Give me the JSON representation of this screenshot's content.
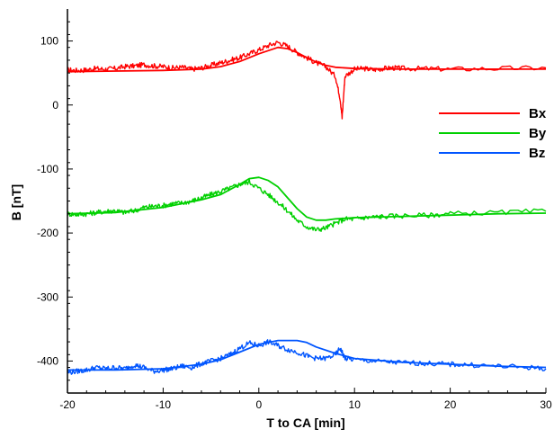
{
  "chart_data": {
    "type": "line",
    "title": "",
    "xlabel": "T to CA [min]",
    "ylabel": "B [nT]",
    "xlim": [
      -20,
      30
    ],
    "ylim": [
      -450,
      150
    ],
    "x_ticks": [
      -20,
      -10,
      0,
      10,
      20,
      30
    ],
    "y_ticks": [
      100,
      0,
      -100,
      -200,
      -300,
      -400
    ],
    "grid": false,
    "legend_position": "right",
    "series": [
      {
        "name": "Bx",
        "color": "#ff0000",
        "observed": [
          [
            -20,
            55
          ],
          [
            -19,
            54
          ],
          [
            -18,
            55
          ],
          [
            -17,
            57
          ],
          [
            -16,
            56
          ],
          [
            -15,
            57
          ],
          [
            -14,
            60
          ],
          [
            -13,
            61
          ],
          [
            -12,
            63
          ],
          [
            -11,
            61
          ],
          [
            -10,
            60
          ],
          [
            -9,
            58
          ],
          [
            -8,
            59
          ],
          [
            -7,
            56
          ],
          [
            -6,
            58
          ],
          [
            -5,
            62
          ],
          [
            -4,
            66
          ],
          [
            -3,
            70
          ],
          [
            -2,
            74
          ],
          [
            -1,
            80
          ],
          [
            0,
            86
          ],
          [
            1,
            93
          ],
          [
            2,
            98
          ],
          [
            3,
            92
          ],
          [
            4,
            82
          ],
          [
            5,
            74
          ],
          [
            6,
            66
          ],
          [
            7,
            60
          ],
          [
            8,
            45
          ],
          [
            8.5,
            10
          ],
          [
            8.7,
            -20
          ],
          [
            9,
            45
          ],
          [
            10,
            56
          ],
          [
            11,
            57
          ],
          [
            12,
            55
          ],
          [
            13,
            57
          ],
          [
            14,
            58
          ],
          [
            15,
            57
          ],
          [
            17,
            57
          ],
          [
            20,
            56
          ],
          [
            25,
            57
          ],
          [
            30,
            58
          ]
        ],
        "model": [
          [
            -20,
            52
          ],
          [
            -15,
            53
          ],
          [
            -10,
            54
          ],
          [
            -6,
            56
          ],
          [
            -4,
            60
          ],
          [
            -2,
            68
          ],
          [
            0,
            80
          ],
          [
            2,
            90
          ],
          [
            3,
            88
          ],
          [
            4,
            82
          ],
          [
            5,
            74
          ],
          [
            6,
            67
          ],
          [
            7,
            62
          ],
          [
            8,
            59
          ],
          [
            10,
            57
          ],
          [
            15,
            56
          ],
          [
            20,
            56
          ],
          [
            25,
            56
          ],
          [
            30,
            56
          ]
        ]
      },
      {
        "name": "By",
        "color": "#00d000",
        "observed": [
          [
            -20,
            -170
          ],
          [
            -19,
            -171
          ],
          [
            -18,
            -170
          ],
          [
            -17,
            -168
          ],
          [
            -16,
            -166
          ],
          [
            -15,
            -165
          ],
          [
            -14,
            -168
          ],
          [
            -13,
            -165
          ],
          [
            -12,
            -160
          ],
          [
            -11,
            -158
          ],
          [
            -10,
            -157
          ],
          [
            -9,
            -154
          ],
          [
            -8,
            -153
          ],
          [
            -7,
            -150
          ],
          [
            -6,
            -145
          ],
          [
            -5,
            -140
          ],
          [
            -4,
            -135
          ],
          [
            -3,
            -130
          ],
          [
            -2,
            -124
          ],
          [
            -1,
            -120
          ],
          [
            0,
            -130
          ],
          [
            1,
            -140
          ],
          [
            2,
            -152
          ],
          [
            3,
            -165
          ],
          [
            4,
            -180
          ],
          [
            5,
            -190
          ],
          [
            6,
            -195
          ],
          [
            7,
            -192
          ],
          [
            8,
            -185
          ],
          [
            9,
            -178
          ],
          [
            10,
            -178
          ],
          [
            11,
            -176
          ],
          [
            12,
            -175
          ],
          [
            13,
            -174
          ],
          [
            15,
            -173
          ],
          [
            18,
            -172
          ],
          [
            20,
            -170
          ],
          [
            25,
            -168
          ],
          [
            30,
            -166
          ]
        ],
        "model": [
          [
            -20,
            -170
          ],
          [
            -15,
            -168
          ],
          [
            -10,
            -160
          ],
          [
            -6,
            -148
          ],
          [
            -4,
            -140
          ],
          [
            -2,
            -124
          ],
          [
            -1,
            -115
          ],
          [
            0,
            -113
          ],
          [
            1,
            -118
          ],
          [
            2,
            -128
          ],
          [
            3,
            -145
          ],
          [
            4,
            -162
          ],
          [
            5,
            -175
          ],
          [
            6,
            -180
          ],
          [
            7,
            -180
          ],
          [
            8,
            -178
          ],
          [
            10,
            -176
          ],
          [
            15,
            -174
          ],
          [
            20,
            -172
          ],
          [
            25,
            -170
          ],
          [
            30,
            -169
          ]
        ]
      },
      {
        "name": "Bz",
        "color": "#0055ff",
        "observed": [
          [
            -20,
            -418
          ],
          [
            -19,
            -416
          ],
          [
            -18,
            -414
          ],
          [
            -17,
            -410
          ],
          [
            -16,
            -412
          ],
          [
            -15,
            -410
          ],
          [
            -14,
            -412
          ],
          [
            -13,
            -406
          ],
          [
            -12,
            -410
          ],
          [
            -11,
            -416
          ],
          [
            -10,
            -414
          ],
          [
            -9,
            -412
          ],
          [
            -8,
            -408
          ],
          [
            -7,
            -410
          ],
          [
            -6,
            -404
          ],
          [
            -5,
            -400
          ],
          [
            -4,
            -396
          ],
          [
            -3,
            -390
          ],
          [
            -2,
            -380
          ],
          [
            -1,
            -372
          ],
          [
            0,
            -376
          ],
          [
            1,
            -370
          ],
          [
            2,
            -376
          ],
          [
            3,
            -382
          ],
          [
            4,
            -386
          ],
          [
            5,
            -392
          ],
          [
            6,
            -396
          ],
          [
            7,
            -396
          ],
          [
            8,
            -390
          ],
          [
            8.5,
            -380
          ],
          [
            9,
            -396
          ],
          [
            10,
            -398
          ],
          [
            12,
            -400
          ],
          [
            14,
            -402
          ],
          [
            16,
            -403
          ],
          [
            18,
            -404
          ],
          [
            20,
            -405
          ],
          [
            22,
            -406
          ],
          [
            25,
            -408
          ],
          [
            28,
            -410
          ],
          [
            30,
            -412
          ]
        ],
        "model": [
          [
            -20,
            -414
          ],
          [
            -15,
            -414
          ],
          [
            -10,
            -412
          ],
          [
            -6,
            -405
          ],
          [
            -4,
            -398
          ],
          [
            -2,
            -386
          ],
          [
            0,
            -374
          ],
          [
            2,
            -368
          ],
          [
            4,
            -368
          ],
          [
            5,
            -371
          ],
          [
            6,
            -378
          ],
          [
            8,
            -388
          ],
          [
            10,
            -396
          ],
          [
            15,
            -402
          ],
          [
            20,
            -405
          ],
          [
            25,
            -408
          ],
          [
            30,
            -410
          ]
        ]
      }
    ]
  }
}
